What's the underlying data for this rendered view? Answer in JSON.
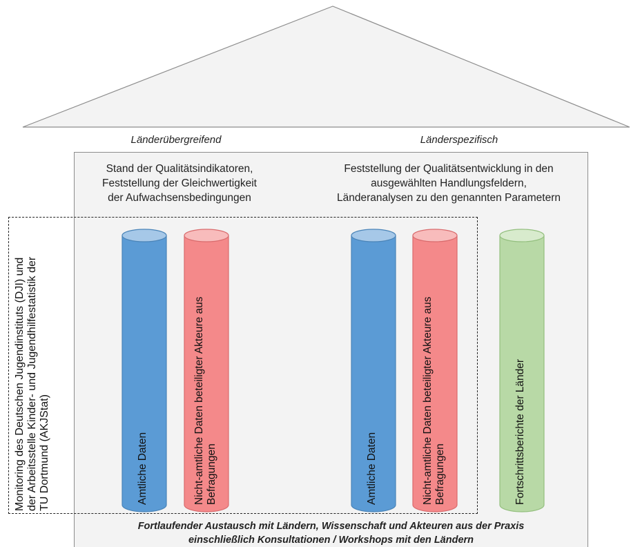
{
  "left_column_heading": "Länderübergreifend",
  "right_column_heading": "Länderspezifisch",
  "left_box_text": [
    "Stand der Qualitätsindikatoren,",
    "Feststellung der Gleichwertigkeit",
    "der Aufwachsensbedingungen"
  ],
  "right_box_text": [
    "Feststellung der Qualitätsentwicklung in den",
    "ausgewählten Handlungsfeldern,",
    "Länderanalysen zu den genannten Parametern"
  ],
  "side_label": [
    "Monitoring des Deutschen Jugendinstituts (DJI) und",
    "der Arbeitsstelle Kinder- und Jugendhilfestatistik der",
    "TU Dortmund (AKJStat)"
  ],
  "pillars": [
    {
      "label": "Amtliche Daten",
      "color": "#5b9bd5"
    },
    {
      "label": "Nicht-amtliche Daten beteiligter Akteure aus Befragungen",
      "color": "#f4898a"
    },
    {
      "label": "Amtliche Daten",
      "color": "#5b9bd5"
    },
    {
      "label": "Nicht-amtliche Daten beteiligter Akteure aus Befragungen",
      "color": "#f4898a"
    },
    {
      "label": "Fortschrittsberichte der Länder",
      "color": "#b8d9a6"
    }
  ],
  "footer": [
    "Fortlaufender Austausch mit Ländern, Wissenschaft und Akteuren aus der Praxis",
    "einschließlich Konsultationen / Workshops mit den Ländern"
  ]
}
